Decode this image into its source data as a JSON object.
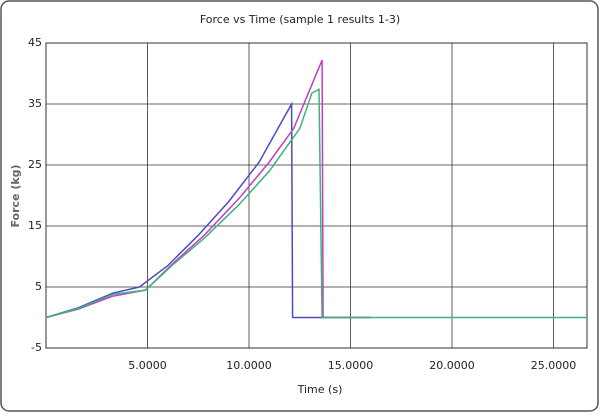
{
  "chart_data": {
    "type": "line",
    "title": "Force vs Time (sample 1 results 1-3)",
    "x_label": "Time (s)",
    "y_label": "Force (kg)",
    "xlim": [
      0,
      26.65
    ],
    "ylim": [
      -5,
      45
    ],
    "xticks": [
      {
        "value": 5,
        "label": "5.0000"
      },
      {
        "value": 10,
        "label": "10.0000"
      },
      {
        "value": 15,
        "label": "15.0000"
      },
      {
        "value": 20,
        "label": "20.0000"
      },
      {
        "value": 25,
        "label": "25.0000"
      }
    ],
    "yticks": [
      -5,
      5,
      15,
      25,
      35,
      45
    ],
    "grid": true,
    "series": [
      {
        "color": "#4b4bc4",
        "x": [
          0,
          1.6,
          3.3,
          4.6,
          6,
          7.5,
          9,
          10.5,
          12.1,
          12.15,
          16
        ],
        "values": [
          0,
          1.6,
          4,
          5,
          8.5,
          13.5,
          19,
          25.5,
          35,
          0,
          0
        ]
      },
      {
        "color": "#c83cc4",
        "x": [
          0,
          1.6,
          3.3,
          4.9,
          6.2,
          7.8,
          9.5,
          11,
          12.2,
          13.6,
          13.65,
          16
        ],
        "values": [
          0,
          1.4,
          3.5,
          4.5,
          8.7,
          13.5,
          19.5,
          25.5,
          31,
          42.2,
          0,
          0
        ]
      },
      {
        "color": "#3cb478",
        "x": [
          0,
          1.6,
          3.3,
          4.9,
          6.2,
          7.8,
          9.5,
          11,
          12.5,
          13.1,
          13.45,
          13.6,
          20,
          26.65
        ],
        "values": [
          0,
          1.5,
          3.8,
          4.5,
          8.5,
          13,
          18.5,
          24,
          31,
          36.8,
          37.4,
          0,
          0,
          0
        ]
      }
    ]
  }
}
